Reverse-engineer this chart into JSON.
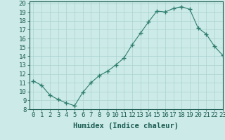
{
  "x": [
    0,
    1,
    2,
    3,
    4,
    5,
    6,
    7,
    8,
    9,
    10,
    11,
    12,
    13,
    14,
    15,
    16,
    17,
    18,
    19,
    20,
    21,
    22,
    23
  ],
  "y": [
    11.2,
    10.7,
    9.6,
    9.1,
    8.7,
    8.4,
    9.9,
    11.0,
    11.8,
    12.3,
    13.0,
    13.8,
    15.3,
    16.6,
    17.9,
    19.1,
    19.0,
    19.4,
    19.6,
    19.3,
    17.2,
    16.5,
    15.1,
    14.1
  ],
  "line_color": "#2e7d6e",
  "marker": "+",
  "marker_size": 4,
  "bg_color": "#cceae7",
  "grid_color": "#aad4d0",
  "xlabel": "Humidex (Indice chaleur)",
  "xlim": [
    -0.5,
    23
  ],
  "ylim": [
    8,
    20.2
  ],
  "yticks": [
    8,
    9,
    10,
    11,
    12,
    13,
    14,
    15,
    16,
    17,
    18,
    19,
    20
  ],
  "xticks": [
    0,
    1,
    2,
    3,
    4,
    5,
    6,
    7,
    8,
    9,
    10,
    11,
    12,
    13,
    14,
    15,
    16,
    17,
    18,
    19,
    20,
    21,
    22,
    23
  ],
  "xlabel_fontsize": 7.5,
  "tick_fontsize": 6.5,
  "tick_color": "#1a5c52",
  "axis_color": "#1a5c52",
  "spine_color": "#1a5c52"
}
